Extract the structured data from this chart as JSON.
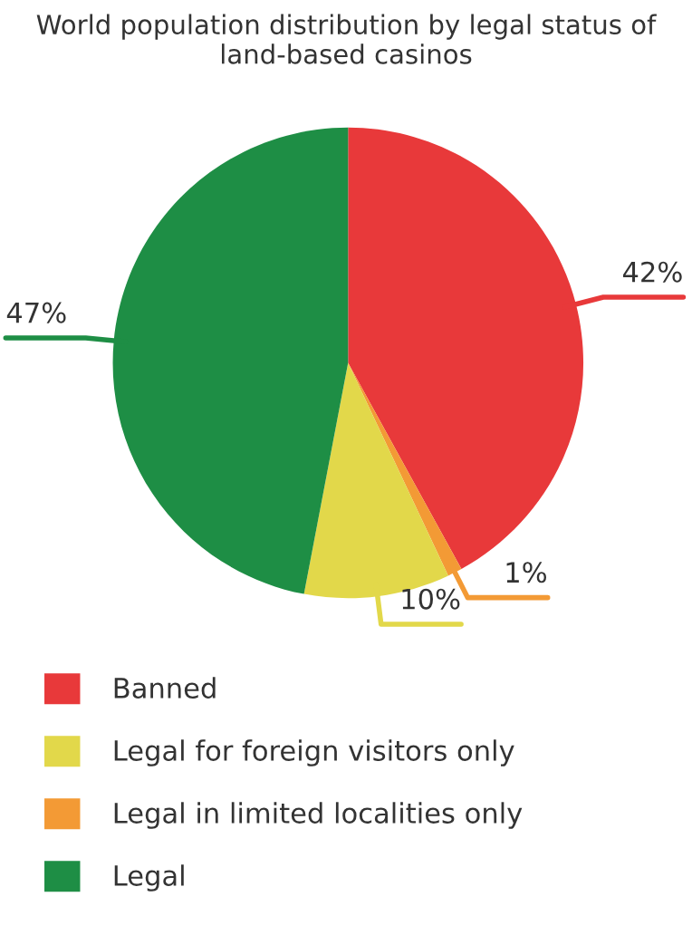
{
  "chart_data": {
    "type": "pie",
    "title": "World population distribution by legal status of land-based casinos",
    "categories": [
      "Banned",
      "Legal in limited localities only",
      "Legal for foreign visitors only",
      "Legal"
    ],
    "values": [
      42,
      1,
      10,
      47
    ],
    "colors": [
      "#e8393a",
      "#f39a35",
      "#e2d84a",
      "#1e8e45"
    ],
    "value_labels": [
      "42%",
      "1%",
      "10%",
      "47%"
    ],
    "legend": "bottom"
  }
}
